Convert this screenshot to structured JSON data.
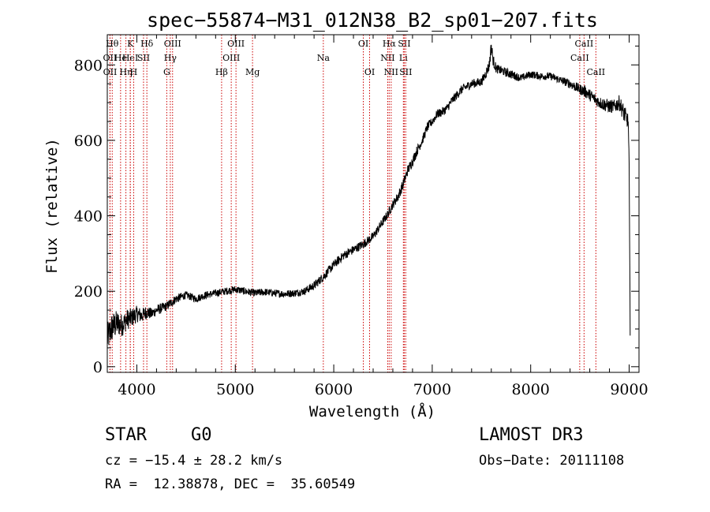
{
  "chart_data": {
    "type": "line",
    "title": "spec−55874−M31_012N38_B2_sp01−207.fits",
    "xlabel": "Wavelength (Å)",
    "ylabel": "Flux (relative)",
    "xlim": [
      3700,
      9100
    ],
    "ylim": [
      -15,
      880
    ],
    "xticks": [
      4000,
      5000,
      6000,
      7000,
      8000,
      9000
    ],
    "yticks": [
      0,
      200,
      400,
      600,
      800
    ],
    "line_color": "#000000",
    "marker_color": "#cc0000",
    "series": [
      {
        "name": "flux",
        "x": [
          3700,
          3750,
          3800,
          3850,
          3900,
          3950,
          4000,
          4050,
          4100,
          4150,
          4200,
          4250,
          4300,
          4350,
          4400,
          4500,
          4600,
          4700,
          4800,
          4900,
          5000,
          5100,
          5200,
          5300,
          5400,
          5500,
          5600,
          5700,
          5800,
          5900,
          6000,
          6100,
          6200,
          6300,
          6400,
          6500,
          6550,
          6600,
          6650,
          6700,
          6750,
          6800,
          6850,
          6900,
          6950,
          7000,
          7050,
          7100,
          7150,
          7200,
          7300,
          7400,
          7500,
          7550,
          7580,
          7600,
          7620,
          7650,
          7700,
          7800,
          7900,
          8000,
          8100,
          8200,
          8300,
          8400,
          8500,
          8550,
          8600,
          8650,
          8700,
          8750,
          8800,
          8850,
          8900,
          8950,
          8990,
          9000,
          9010
        ],
        "y": [
          75,
          105,
          115,
          110,
          125,
          130,
          140,
          135,
          145,
          140,
          150,
          155,
          160,
          170,
          180,
          190,
          180,
          190,
          195,
          200,
          205,
          200,
          195,
          198,
          195,
          193,
          195,
          200,
          215,
          240,
          270,
          295,
          310,
          325,
          345,
          385,
          405,
          430,
          450,
          480,
          520,
          545,
          575,
          600,
          635,
          650,
          670,
          675,
          685,
          705,
          735,
          750,
          755,
          780,
          800,
          850,
          810,
          790,
          785,
          775,
          765,
          775,
          770,
          770,
          760,
          750,
          735,
          730,
          720,
          710,
          700,
          695,
          690,
          690,
          700,
          670,
          650,
          530,
          100
        ],
        "noise": [
          40,
          40,
          35,
          30,
          28,
          25,
          22,
          20,
          18,
          15,
          14,
          14,
          12,
          12,
          12,
          10,
          10,
          10,
          10,
          10,
          10,
          10,
          10,
          10,
          10,
          10,
          10,
          10,
          12,
          12,
          12,
          12,
          12,
          12,
          12,
          12,
          12,
          12,
          14,
          14,
          14,
          14,
          14,
          12,
          12,
          12,
          12,
          12,
          12,
          12,
          12,
          12,
          12,
          14,
          16,
          20,
          16,
          12,
          12,
          12,
          10,
          10,
          10,
          10,
          10,
          12,
          14,
          16,
          16,
          16,
          16,
          18,
          18,
          18,
          20,
          24,
          20,
          20,
          20
        ]
      }
    ],
    "line_markers": [
      {
        "wl": 3750,
        "label": "Hθ",
        "row": 0
      },
      {
        "wl": 3727,
        "label": "OII",
        "row": 1
      },
      {
        "wl": 3728,
        "label": "OII",
        "row": 2
      },
      {
        "wl": 3835,
        "label": "He",
        "row": 1
      },
      {
        "wl": 3889,
        "label": "Hη",
        "row": 2
      },
      {
        "wl": 3934,
        "label": "K",
        "row": 0
      },
      {
        "wl": 3933,
        "label": "HeI",
        "row": 1
      },
      {
        "wl": 3968,
        "label": "H",
        "row": 2
      },
      {
        "wl": 4068,
        "label": "SII",
        "row": 1
      },
      {
        "wl": 4102,
        "label": "Hδ",
        "row": 0
      },
      {
        "wl": 4304,
        "label": "G",
        "row": 2
      },
      {
        "wl": 4340,
        "label": "Hγ",
        "row": 1
      },
      {
        "wl": 4363,
        "label": "OIII",
        "row": 0
      },
      {
        "wl": 4861,
        "label": "Hβ",
        "row": 2
      },
      {
        "wl": 4959,
        "label": "OIII",
        "row": 1
      },
      {
        "wl": 5007,
        "label": "OIII",
        "row": 0
      },
      {
        "wl": 5175,
        "label": "Mg",
        "row": 2
      },
      {
        "wl": 5894,
        "label": "Na",
        "row": 1
      },
      {
        "wl": 6300,
        "label": "OI",
        "row": 0
      },
      {
        "wl": 6364,
        "label": "OI",
        "row": 2
      },
      {
        "wl": 6548,
        "label": "NII",
        "row": 1
      },
      {
        "wl": 6563,
        "label": "Hα",
        "row": 0
      },
      {
        "wl": 6583,
        "label": "NII",
        "row": 2
      },
      {
        "wl": 6707,
        "label": "Li",
        "row": 1
      },
      {
        "wl": 6716,
        "label": "SII",
        "row": 0
      },
      {
        "wl": 6731,
        "label": "SII",
        "row": 2
      },
      {
        "wl": 8498,
        "label": "CaII",
        "row": 1
      },
      {
        "wl": 8542,
        "label": "CaII",
        "row": 0
      },
      {
        "wl": 8662,
        "label": "CaII",
        "row": 2
      }
    ]
  },
  "info": {
    "object_class": "STAR",
    "subclass": "G0",
    "survey": "LAMOST DR3",
    "redshift_line": "cz = −15.4 ± 28.2 km/s",
    "obs_date": "Obs−Date: 20111108",
    "coords": "RA =  12.38878, DEC =  35.60549"
  }
}
